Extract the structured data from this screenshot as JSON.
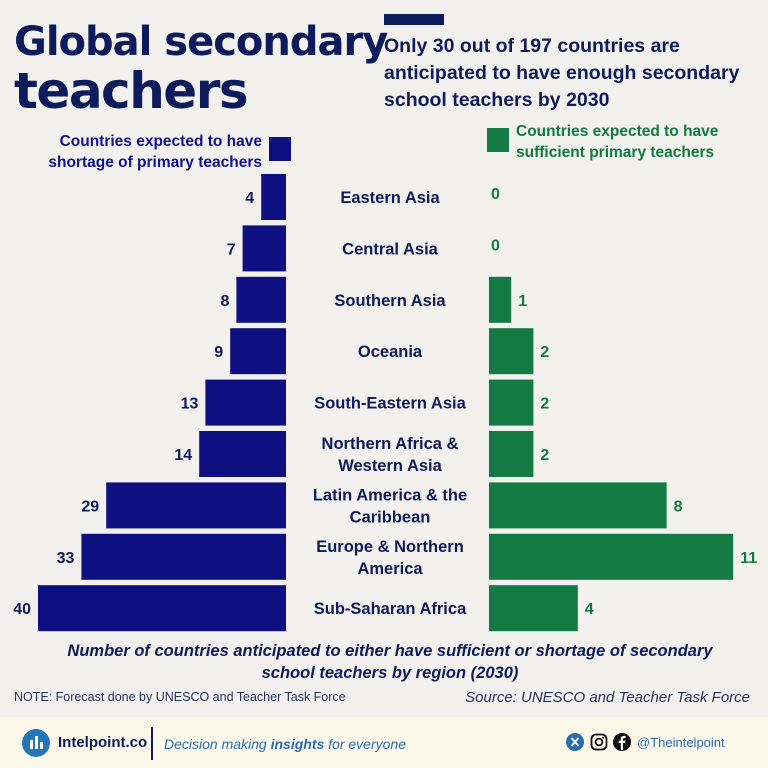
{
  "header": {
    "title_line1": "Global secondary",
    "title_line2": "teachers",
    "subtitle": "Only 30 out of 197 countries are anticipated to have enough secondary school teachers by 2030"
  },
  "legend": {
    "left": "Countries expected to have shortage of primary teachers",
    "right": "Countries expected to have sufficient primary teachers"
  },
  "colors": {
    "shortage": "#0e0f80",
    "shortage_label": "#0d1a5c",
    "sufficient": "#147a43",
    "sufficient_label": "#147a43",
    "category_label": "#0d1a5c"
  },
  "chart_data": {
    "type": "bar",
    "orientation": "horizontal-diverging",
    "categories": [
      [
        "Eastern Asia"
      ],
      [
        "Central Asia"
      ],
      [
        "Southern Asia"
      ],
      [
        "Oceania"
      ],
      [
        "South-Eastern Asia"
      ],
      [
        "Northern Africa &",
        "Western Asia"
      ],
      [
        "Latin America & the",
        "Caribbean"
      ],
      [
        "Europe & Northern",
        "America"
      ],
      [
        "Sub-Saharan Africa"
      ]
    ],
    "series": [
      {
        "name": "Countries expected to have shortage of primary teachers",
        "side": "left",
        "values": [
          4,
          7,
          8,
          9,
          13,
          14,
          29,
          33,
          40
        ]
      },
      {
        "name": "Countries expected to have sufficient primary teachers",
        "side": "right",
        "values": [
          0,
          0,
          1,
          2,
          2,
          2,
          8,
          11,
          4
        ]
      }
    ],
    "xlabel": "Number of countries anticipated to either have sufficient or shortage of secondary school teachers by region (2030)"
  },
  "note": "NOTE: Forecast done by UNESCO and Teacher Task Force",
  "source": "Source: UNESCO and Teacher Task Force",
  "footer": {
    "brand": "Intelpoint.co",
    "tagline_pre": "Decision making ",
    "tagline_bold": "insights",
    "tagline_post": " for everyone",
    "handle": "@Theintelpoint",
    "icons": [
      "x-icon",
      "instagram-icon",
      "facebook-icon"
    ]
  }
}
